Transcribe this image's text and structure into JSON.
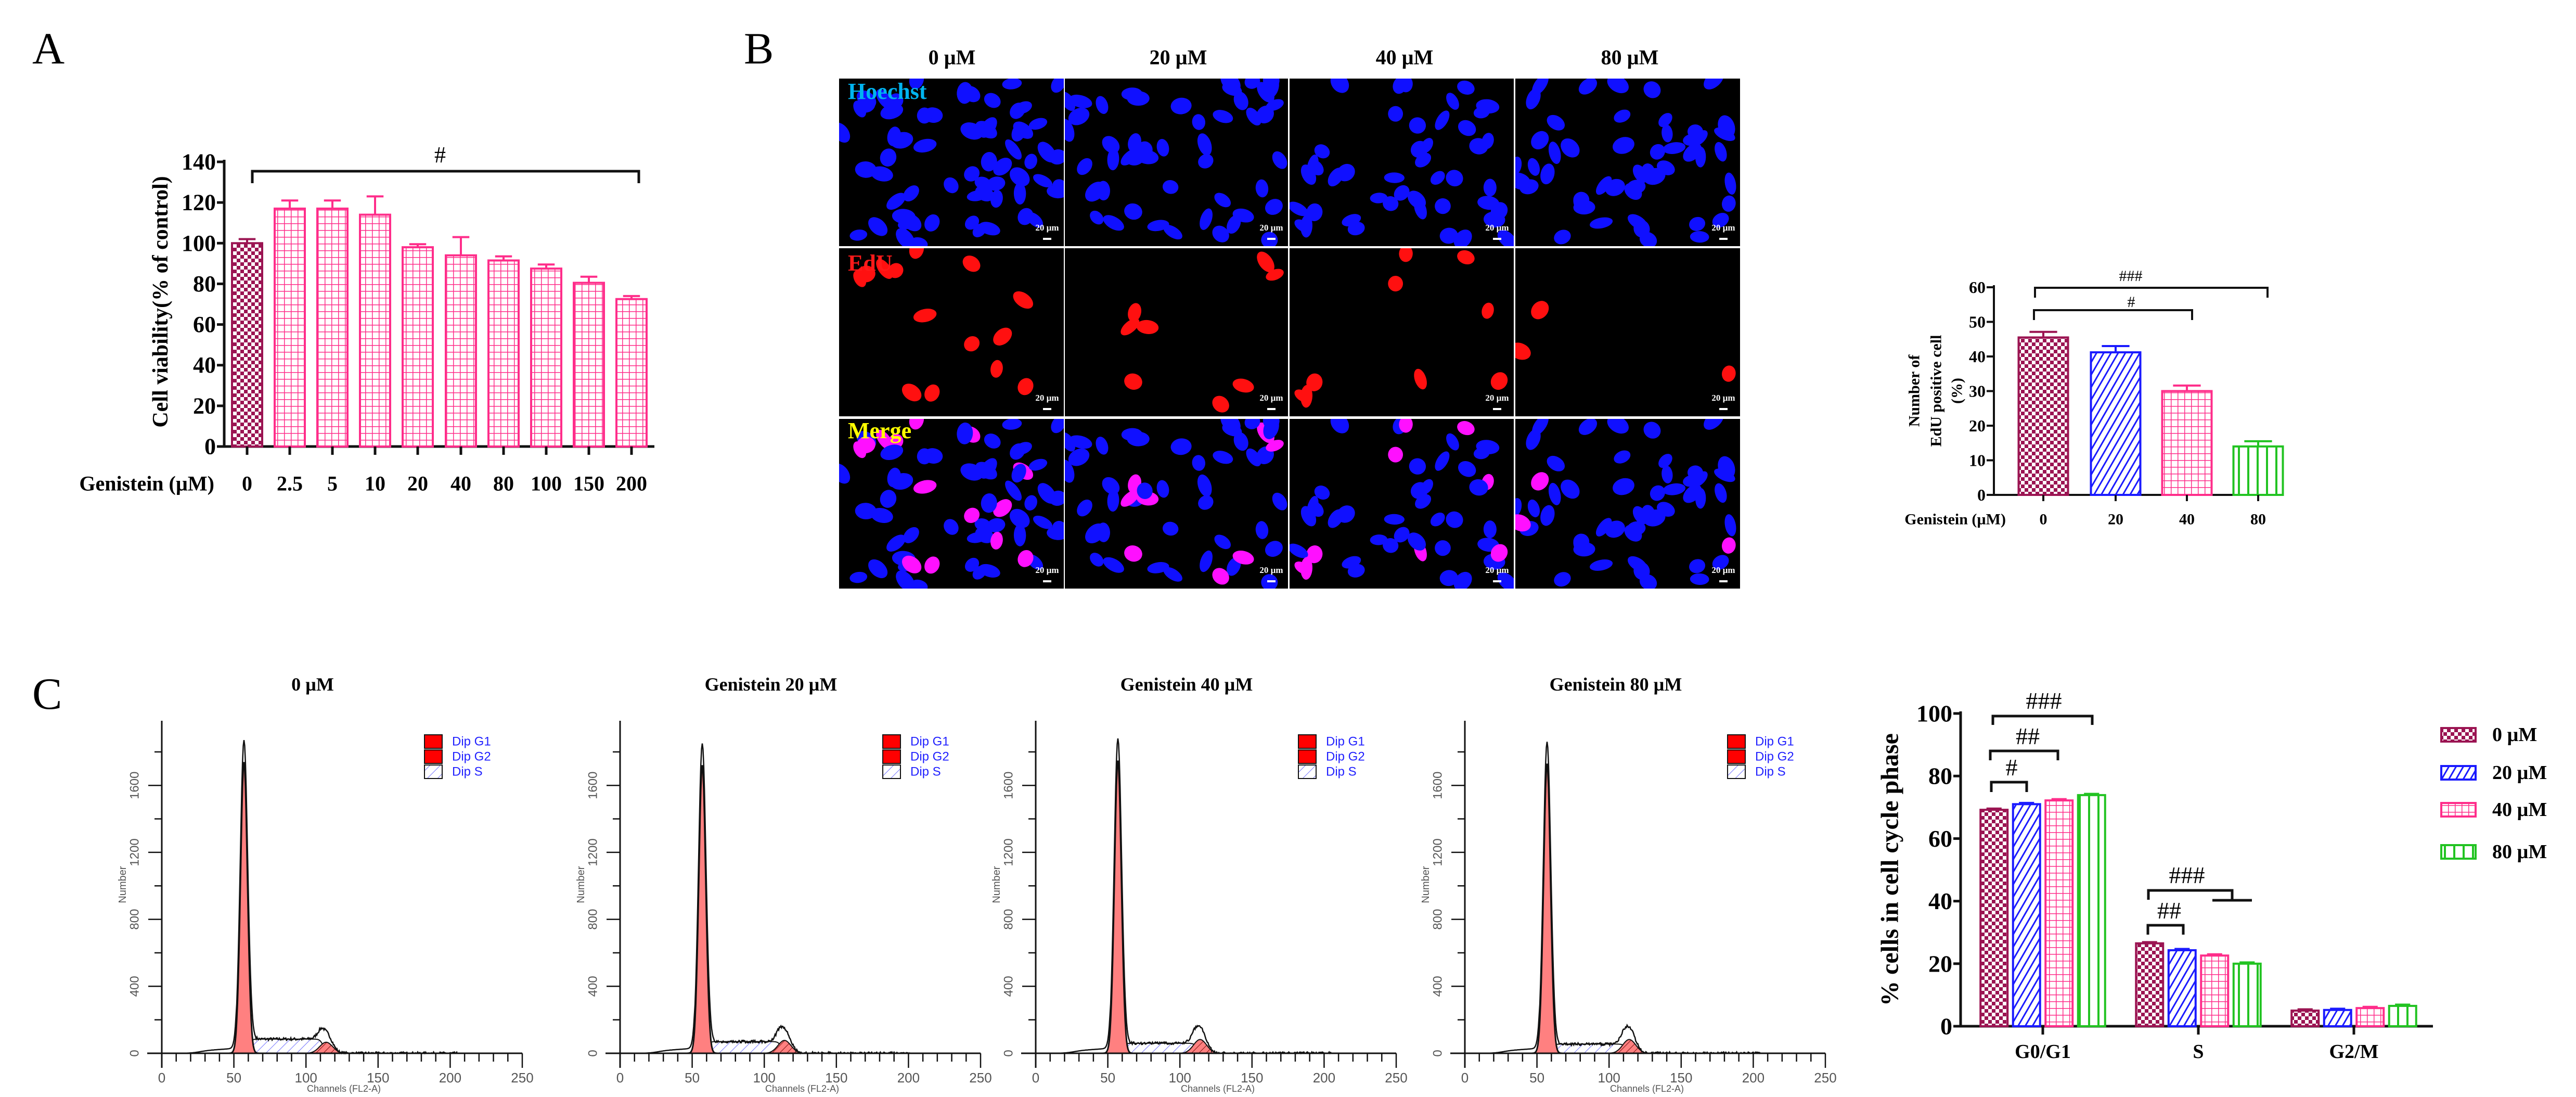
{
  "figure": {
    "panel_a": "A",
    "panel_b": "B",
    "panel_c": "C"
  },
  "colors": {
    "dose_0": "#9b1452",
    "dose_20": "#1a1aff",
    "dose_40": "#ff2d8a",
    "dose_80": "#22c322",
    "hoechst_label": "#00b4f0",
    "edu_label": "#ff1a1a",
    "merge_label": "#ffff00",
    "nucleus_blue": "#1010ff",
    "nucleus_red": "#ff1010",
    "nucleus_magenta": "#ff10ff",
    "flow_peak_fill": "#ff8080",
    "flow_legend_red": "#ff0000",
    "flow_legend_text": "#2020ff"
  },
  "microscopy": {
    "columns": [
      "0 µM",
      "20 µM",
      "40 µM",
      "80 µM"
    ],
    "rows": [
      "Hoechst",
      "EdU",
      "Merge"
    ],
    "scale_bar": "20 µm"
  },
  "chart_data": [
    {
      "type": "bar",
      "xlabel": "Genistein (µM)",
      "ylabel": "Cell viability(% of control)",
      "categories": [
        "0",
        "2.5",
        "5",
        "10",
        "20",
        "40",
        "80",
        "100",
        "150",
        "200"
      ],
      "values": [
        100,
        117,
        117,
        114,
        98,
        94,
        91.5,
        87.5,
        80.5,
        72.5
      ],
      "errors": [
        2,
        4,
        4,
        9,
        1.5,
        9,
        2,
        2,
        3,
        1.5
      ],
      "ylim": [
        0,
        140
      ],
      "yticks": [
        "0",
        "20",
        "40",
        "60",
        "80",
        "100",
        "120",
        "140"
      ],
      "grid": false,
      "significance": [
        {
          "label": "#",
          "from": "0",
          "to": "200"
        }
      ]
    },
    {
      "type": "bar",
      "xlabel": "Genistein (µM)",
      "ylabel_lines": [
        "Number of",
        "EdU positive cell",
        "(%)"
      ],
      "categories": [
        "0",
        "20",
        "40",
        "80"
      ],
      "values": [
        45.5,
        41.2,
        30,
        14
      ],
      "errors": [
        1.6,
        1.8,
        1.6,
        1.5
      ],
      "ylim": [
        0,
        60
      ],
      "yticks": [
        "0",
        "10",
        "20",
        "30",
        "40",
        "50",
        "60"
      ],
      "grid": false,
      "significance": [
        {
          "label": "###",
          "from": "0",
          "to": "80"
        },
        {
          "label": "#",
          "from": "0",
          "to": "40"
        }
      ]
    },
    {
      "type": "bar",
      "ylabel": "% cells in cell cycle phase",
      "categories": [
        "G0/G1",
        "S",
        "G2/M"
      ],
      "series": [
        {
          "name": "0 µM",
          "values": [
            69.2,
            26.5,
            5.0
          ]
        },
        {
          "name": "20 µM",
          "values": [
            71.0,
            24.3,
            5.2
          ]
        },
        {
          "name": "40 µM",
          "values": [
            72.2,
            22.6,
            5.8
          ]
        },
        {
          "name": "80 µM",
          "values": [
            73.9,
            20.0,
            6.5
          ]
        }
      ],
      "ylim": [
        0,
        100
      ],
      "yticks": [
        "0",
        "20",
        "40",
        "60",
        "80",
        "100"
      ],
      "grid": false,
      "legend": "right",
      "significance": [
        {
          "label": "#",
          "group": "G0/G1",
          "from": "0 µM",
          "to": "20 µM"
        },
        {
          "label": "##",
          "group": "G0/G1",
          "from": "0 µM",
          "to": "40 µM"
        },
        {
          "label": "###",
          "group": "G0/G1",
          "from": "0 µM",
          "to": "80 µM"
        },
        {
          "label": "##",
          "group": "S",
          "from": "0 µM",
          "to": "20 µM"
        },
        {
          "label": "###",
          "group": "S",
          "from": "0 µM",
          "to": "40 µM / 80 µM"
        }
      ]
    },
    {
      "type": "area",
      "title": "0 µM",
      "xlabel": "Channels (FL2-A)",
      "ylabel": "Number",
      "xlim": [
        0,
        250
      ],
      "xticks": [
        "0",
        "50",
        "100",
        "150",
        "200",
        "250"
      ],
      "yticks": [
        "400",
        "800",
        "1200",
        "1600"
      ],
      "legend": [
        "Dip G1",
        "Dip G2",
        "Dip S"
      ],
      "legend_position": "top-right",
      "g1_peak": {
        "channel": 57,
        "count": 1870
      },
      "g2_peak": {
        "channel": 114,
        "count": 120
      }
    },
    {
      "type": "area",
      "title": "Genistein 20 µM",
      "xlabel": "Channels (FL2-A)",
      "ylabel": "Number",
      "xlim": [
        0,
        250
      ],
      "xticks": [
        "0",
        "50",
        "100",
        "150",
        "200",
        "250"
      ],
      "yticks": [
        "400",
        "800",
        "1200",
        "1600"
      ],
      "legend": [
        "Dip G1",
        "Dip G2",
        "Dip S"
      ],
      "legend_position": "top-right",
      "g1_peak": {
        "channel": 57,
        "count": 1850
      },
      "g2_peak": {
        "channel": 114,
        "count": 140
      }
    },
    {
      "type": "area",
      "title": "Genistein 40 µM",
      "xlabel": "Channels (FL2-A)",
      "ylabel": "Number",
      "xlim": [
        0,
        250
      ],
      "xticks": [
        "0",
        "50",
        "100",
        "150",
        "200",
        "250"
      ],
      "yticks": [
        "400",
        "800",
        "1200",
        "1600"
      ],
      "legend": [
        "Dip G1",
        "Dip G2",
        "Dip S"
      ],
      "legend_position": "top-right",
      "g1_peak": {
        "channel": 57,
        "count": 1880
      },
      "g2_peak": {
        "channel": 114,
        "count": 150
      }
    },
    {
      "type": "area",
      "title": "Genistein 80 µM",
      "xlabel": "Channels (FL2-A)",
      "ylabel": "Number",
      "xlim": [
        0,
        250
      ],
      "xticks": [
        "0",
        "50",
        "100",
        "150",
        "200",
        "250"
      ],
      "yticks": [
        "400",
        "800",
        "1200",
        "1600"
      ],
      "legend": [
        "Dip G1",
        "Dip G2",
        "Dip S"
      ],
      "legend_position": "top-right",
      "g1_peak": {
        "channel": 57,
        "count": 1860
      },
      "g2_peak": {
        "channel": 114,
        "count": 150
      }
    }
  ]
}
